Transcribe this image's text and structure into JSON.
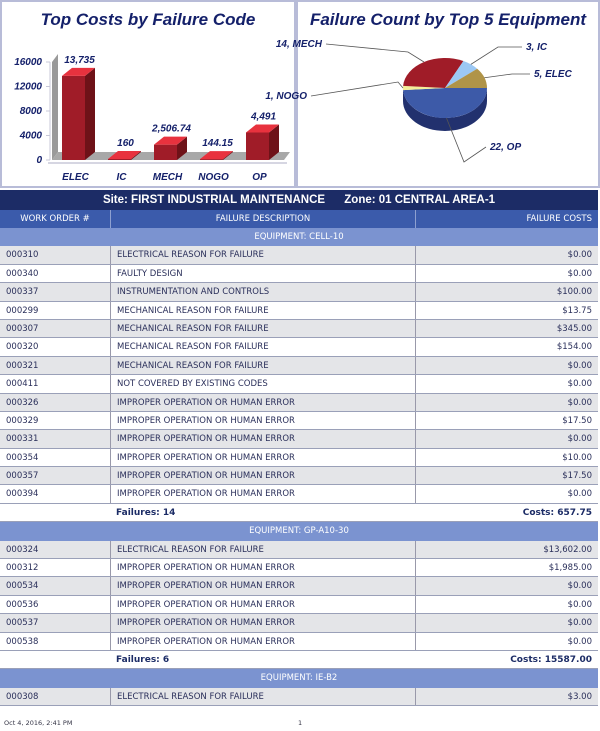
{
  "bar_chart": {
    "chart_data": {
      "type": "bar",
      "title": "Top Costs by Failure Code",
      "categories": [
        "ELEC",
        "IC",
        "MECH",
        "NOGO",
        "OP"
      ],
      "values": [
        13735,
        160,
        2506.74,
        144.15,
        4491
      ],
      "data_labels": [
        "13,735",
        "160",
        "2,506.74",
        "144.15",
        "4,491"
      ],
      "yticks": [
        "0",
        "4000",
        "8000",
        "12000",
        "16000"
      ],
      "ylim": [
        0,
        16000
      ],
      "bar_color": "#a01c28",
      "style": "3d"
    }
  },
  "pie_chart": {
    "chart_data": {
      "type": "pie",
      "title": "Failure Count by Top 5 Equipment",
      "slices": [
        {
          "label": "22, OP",
          "name": "OP",
          "value": 22,
          "color": "#3d5aa8"
        },
        {
          "label": "1, NOGO",
          "name": "NOGO",
          "value": 1,
          "color": "#f4ee9a"
        },
        {
          "label": "14, MECH",
          "name": "MECH",
          "value": 14,
          "color": "#a01c28"
        },
        {
          "label": "3, IC",
          "name": "IC",
          "value": 3,
          "color": "#9cc8f4"
        },
        {
          "label": "5, ELEC",
          "name": "ELEC",
          "value": 5,
          "color": "#b09448"
        }
      ],
      "style": "3d"
    }
  },
  "site": {
    "site": "Site: FIRST INDUSTRIAL MAINTENANCE",
    "zone": "Zone: 01 CENTRAL AREA-1"
  },
  "columns": [
    "WORK ORDER #",
    "FAILURE DESCRIPTION",
    "FAILURE COSTS"
  ],
  "groups": [
    {
      "equipment": "EQUIPMENT: CELL-10",
      "rows": [
        [
          "000310",
          "ELECTRICAL REASON FOR FAILURE",
          "$0.00"
        ],
        [
          "000340",
          "FAULTY DESIGN",
          "$0.00"
        ],
        [
          "000337",
          "INSTRUMENTATION AND CONTROLS",
          "$100.00"
        ],
        [
          "000299",
          "MECHANICAL REASON FOR FAILURE",
          "$13.75"
        ],
        [
          "000307",
          "MECHANICAL REASON FOR FAILURE",
          "$345.00"
        ],
        [
          "000320",
          "MECHANICAL REASON FOR FAILURE",
          "$154.00"
        ],
        [
          "000321",
          "MECHANICAL REASON FOR FAILURE",
          "$0.00"
        ],
        [
          "000411",
          "NOT COVERED BY EXISTING  CODES",
          "$0.00"
        ],
        [
          "000326",
          "IMPROPER OPERATION OR HUMAN ERROR",
          "$0.00"
        ],
        [
          "000329",
          "IMPROPER OPERATION OR HUMAN ERROR",
          "$17.50"
        ],
        [
          "000331",
          "IMPROPER OPERATION OR HUMAN ERROR",
          "$0.00"
        ],
        [
          "000354",
          "IMPROPER OPERATION OR HUMAN ERROR",
          "$10.00"
        ],
        [
          "000357",
          "IMPROPER OPERATION OR HUMAN ERROR",
          "$17.50"
        ],
        [
          "000394",
          "IMPROPER OPERATION OR HUMAN ERROR",
          "$0.00"
        ]
      ],
      "failures": "Failures: 14",
      "costs": "Costs: 657.75"
    },
    {
      "equipment": "EQUIPMENT: GP-A10-30",
      "rows": [
        [
          "000324",
          "ELECTRICAL REASON FOR FAILURE",
          "$13,602.00"
        ],
        [
          "000312",
          "IMPROPER OPERATION OR HUMAN ERROR",
          "$1,985.00"
        ],
        [
          "000534",
          "IMPROPER OPERATION OR HUMAN ERROR",
          "$0.00"
        ],
        [
          "000536",
          "IMPROPER OPERATION OR HUMAN ERROR",
          "$0.00"
        ],
        [
          "000537",
          "IMPROPER OPERATION OR HUMAN ERROR",
          "$0.00"
        ],
        [
          "000538",
          "IMPROPER OPERATION OR HUMAN ERROR",
          "$0.00"
        ]
      ],
      "failures": "Failures: 6",
      "costs": "Costs: 15587.00"
    },
    {
      "equipment": "EQUIPMENT: IE-B2",
      "rows": [
        [
          "000308",
          "ELECTRICAL REASON FOR FAILURE",
          "$3.00"
        ]
      ]
    }
  ],
  "footer": {
    "timestamp": "Oct 4, 2016, 2:41 PM",
    "page": "1"
  }
}
